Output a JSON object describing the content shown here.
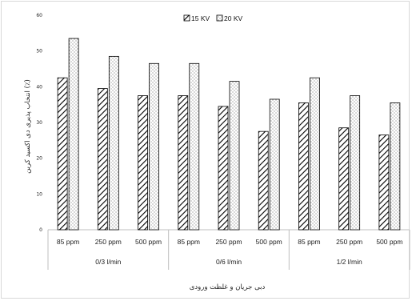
{
  "chart_data": {
    "type": "bar",
    "xlabel": "دبی جریان و غلظت ورودی",
    "ylabel": "انتخاب پذیری دی اکسید کربن (٪)",
    "ylim": [
      0,
      60
    ],
    "yticks": [
      0,
      10,
      20,
      30,
      40,
      50,
      60
    ],
    "grid": false,
    "legend_position": "top-center",
    "groups": [
      "0/3 l/min",
      "0/6 l/min",
      "1/2 l/min"
    ],
    "categories": [
      "85 ppm",
      "250 ppm",
      "500 ppm",
      "85 ppm",
      "250 ppm",
      "500 ppm",
      "85 ppm",
      "250 ppm",
      "500 ppm"
    ],
    "series": [
      {
        "name": "15 KV",
        "pattern": "diagonal-hatch",
        "values": [
          42.5,
          39.5,
          37.5,
          37.5,
          34.5,
          27.5,
          35.5,
          28.5,
          26.5
        ]
      },
      {
        "name": "20 KV",
        "pattern": "dotted",
        "values": [
          53.5,
          48.5,
          46.5,
          46.5,
          41.5,
          36.5,
          42.5,
          37.5,
          35.5
        ]
      }
    ]
  }
}
